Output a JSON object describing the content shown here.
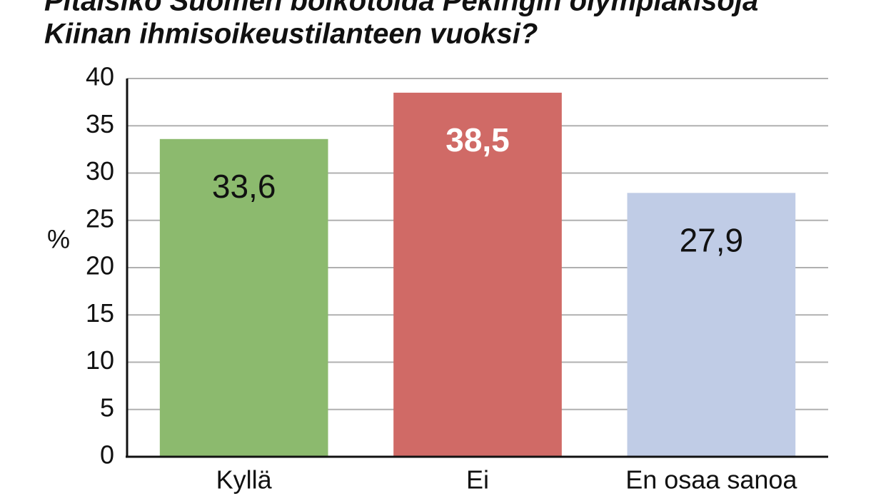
{
  "chart_data": {
    "type": "bar",
    "title": [
      "Pitäisikö Suomen boikotoida Pekingin olympiakisoja",
      "Kiinan ihmisoikeustilanteen vuoksi?"
    ],
    "y_label": "%",
    "categories": [
      "Kyllä",
      "Ei",
      "En osaa sanoa"
    ],
    "values": [
      33.6,
      38.5,
      27.9
    ],
    "value_labels": [
      "33,6",
      "38,5",
      "27,9"
    ],
    "colors": [
      "#8cba6e",
      "#d06a66",
      "#c0cce6"
    ],
    "value_label_colors": [
      "#111111",
      "#ffffff",
      "#111111"
    ],
    "value_label_bold": [
      false,
      true,
      false
    ],
    "ylim": [
      0,
      40
    ],
    "yticks": [
      0,
      5,
      10,
      15,
      20,
      25,
      30,
      35,
      40
    ],
    "grid": true
  }
}
